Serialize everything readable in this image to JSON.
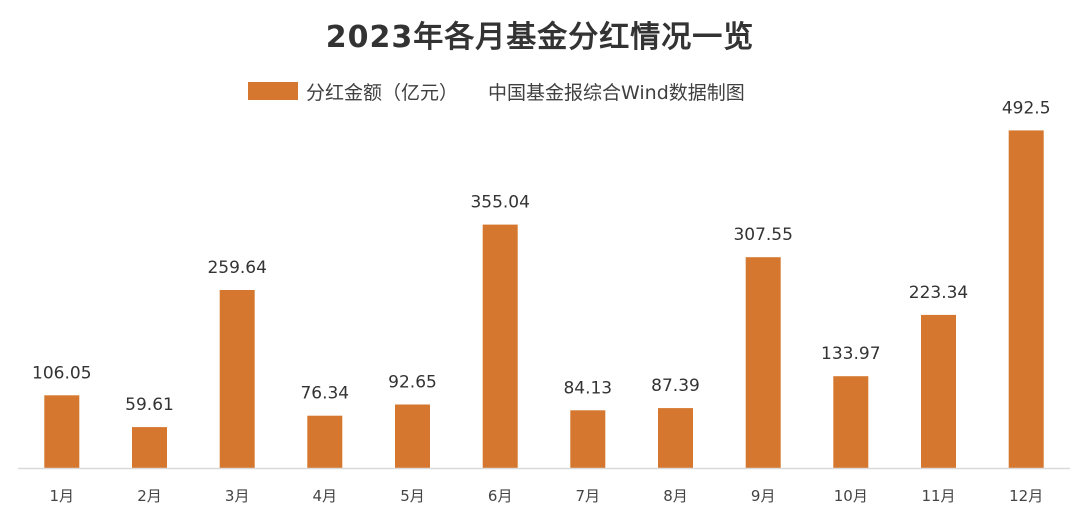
{
  "chart_data": {
    "type": "bar",
    "title": "2023年各月基金分红情况一览",
    "source_note": "中国基金报综合Wind数据制图",
    "categories": [
      "1月",
      "2月",
      "3月",
      "4月",
      "5月",
      "6月",
      "7月",
      "8月",
      "9月",
      "10月",
      "11月",
      "12月"
    ],
    "series": [
      {
        "name": "分红金额（亿元）",
        "values": [
          106.05,
          59.61,
          259.64,
          76.34,
          92.65,
          355.04,
          84.13,
          87.39,
          307.55,
          133.97,
          223.34,
          492.5
        ],
        "value_labels": [
          "106.05",
          "59.61",
          "259.64",
          "76.34",
          "92.65",
          "355.04",
          "84.13",
          "87.39",
          "307.55",
          "133.97",
          "223.34",
          "492.5"
        ]
      }
    ],
    "ylim": [
      0,
      500
    ],
    "grid": false,
    "legend_position": "top",
    "bar_color": "#D5772E",
    "axis_color": "#D9D9D9"
  }
}
